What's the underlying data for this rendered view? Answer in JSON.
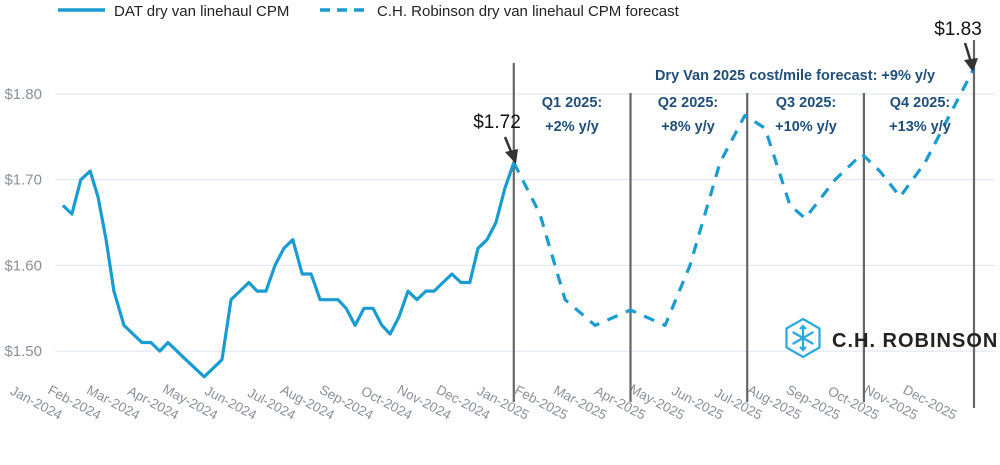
{
  "chart_data": {
    "type": "line",
    "title": "",
    "xlabel": "",
    "ylabel": "",
    "ylim": [
      1.44,
      1.86
    ],
    "yticks": [
      1.5,
      1.6,
      1.7,
      1.8
    ],
    "ytick_labels": [
      "$1.50",
      "$1.60",
      "$1.70",
      "$1.80"
    ],
    "grid": "horizontal",
    "legend_position": "top",
    "x_unit": "month index (0 = Jan-2024)",
    "categories": [
      "Jan-2024",
      "Feb-2024",
      "Mar-2024",
      "Apr-2024",
      "May-2024",
      "Jun-2024",
      "Jul-2024",
      "Aug-2024",
      "Sep-2024",
      "Oct-2024",
      "Nov-2024",
      "Dec-2024",
      "Jan-2025",
      "Feb-2025",
      "Mar-2025",
      "Apr-2025",
      "May-2025",
      "Jun-2025",
      "Jul-2025",
      "Aug-2025",
      "Sep-2025",
      "Oct-2025",
      "Nov-2025",
      "Dec-2025"
    ],
    "series": [
      {
        "name": "DAT dry van linehaul CPM",
        "style": "solid",
        "color": "#1a9bd1",
        "x": [
          0.41,
          0.64,
          0.87,
          1.11,
          1.31,
          1.52,
          1.72,
          1.98,
          2.21,
          2.44,
          2.67,
          2.9,
          3.11,
          3.57,
          4.04,
          4.5,
          4.73,
          5.19,
          5.4,
          5.63,
          5.86,
          6.09,
          6.32,
          6.56,
          6.79,
          7.02,
          7.48,
          7.69,
          7.92,
          8.15,
          8.38,
          8.61,
          8.82,
          9.05,
          9.28,
          9.51,
          9.74,
          9.95,
          10.18,
          10.41,
          10.64,
          10.87,
          11.08,
          11.31,
          11.54,
          11.77,
          12.0
        ],
        "values": [
          1.67,
          1.66,
          1.7,
          1.71,
          1.68,
          1.63,
          1.57,
          1.53,
          1.52,
          1.51,
          1.51,
          1.5,
          1.51,
          1.49,
          1.47,
          1.49,
          1.56,
          1.58,
          1.57,
          1.57,
          1.6,
          1.62,
          1.63,
          1.59,
          1.59,
          1.56,
          1.56,
          1.55,
          1.53,
          1.55,
          1.55,
          1.53,
          1.52,
          1.54,
          1.57,
          1.56,
          1.57,
          1.57,
          1.58,
          1.59,
          1.58,
          1.58,
          1.62,
          1.63,
          1.65,
          1.69,
          1.72
        ]
      },
      {
        "name": "C.H. Robinson dry van linehaul CPM forecast",
        "style": "dashed",
        "color": "#1a9bd1",
        "x": [
          12.0,
          12.67,
          13.32,
          14.09,
          15.0,
          15.89,
          16.53,
          17.3,
          17.94,
          18.46,
          19.1,
          19.49,
          20.26,
          20.95,
          21.41,
          21.93,
          22.57,
          23.83
        ],
        "values": [
          1.72,
          1.66,
          1.56,
          1.53,
          1.548,
          1.53,
          1.6,
          1.72,
          1.775,
          1.76,
          1.67,
          1.655,
          1.7,
          1.73,
          1.71,
          1.68,
          1.72,
          1.83
        ]
      }
    ],
    "dividers_x": [
      12,
      15,
      18,
      21,
      23.83
    ],
    "annotations": {
      "headline": "Dry Van 2025 cost/mile forecast: +9% y/y",
      "quarters": [
        {
          "label": "Q1 2025:",
          "change": "+2% y/y"
        },
        {
          "label": "Q2 2025:",
          "change": "+8% y/y"
        },
        {
          "label": "Q3 2025:",
          "change": "+10% y/y"
        },
        {
          "label": "Q4 2025:",
          "change": "+13% y/y"
        }
      ],
      "start_value": "$1.72",
      "end_value": "$1.83"
    }
  },
  "logo": {
    "text": "C.H. ROBINSON",
    "icon": "chrobinson-hexagon-icon",
    "color": "#29a8e0"
  },
  "colors": {
    "line": "#1a9bd1",
    "grid": "#dde3ee",
    "divider": "#666666",
    "quarter_text": "#1f4e79",
    "tick": "#8a8f99"
  }
}
